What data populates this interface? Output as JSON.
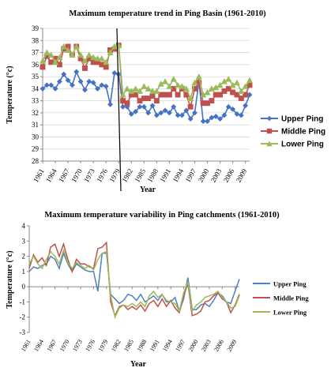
{
  "chart_data": [
    {
      "type": "line",
      "title": "Maximum temperature trend in Ping Basin (1961-2010)",
      "xlabel": "Year",
      "ylabel": "Temperature (°c)",
      "ylim": [
        28,
        39
      ],
      "yticks": [
        "28",
        "29",
        "30",
        "31",
        "32",
        "33",
        "34",
        "35",
        "36",
        "37",
        "38",
        "39"
      ],
      "xticks": [
        "1961",
        "1964",
        "1967",
        "1970",
        "1973",
        "1976",
        "1979",
        "1982",
        "1985",
        "1988",
        "1991",
        "1994",
        "1997",
        "2000",
        "2003",
        "2006",
        "2009"
      ],
      "x_start": 1961,
      "legend_position": "right",
      "series": [
        {
          "name": "Upper Ping",
          "color": "#4472C4",
          "marker": "diamond",
          "values": [
            34.0,
            34.3,
            34.3,
            34.0,
            34.6,
            35.2,
            34.7,
            34.3,
            35.4,
            34.6,
            33.9,
            34.6,
            34.5,
            34.0,
            34.3,
            34.2,
            32.7,
            35.3,
            35.2,
            32.5,
            32.5,
            31.9,
            32.1,
            32.5,
            32.5,
            32.0,
            32.6,
            31.8,
            32.0,
            32.2,
            32.0,
            32.5,
            31.8,
            31.8,
            32.2,
            31.5,
            32.0,
            34.6,
            31.3,
            31.3,
            31.6,
            31.7,
            31.5,
            31.8,
            32.5,
            32.3,
            31.9,
            31.8,
            32.6,
            33.5
          ]
        },
        {
          "name": "Middle Ping",
          "color": "#C0504D",
          "marker": "square",
          "values": [
            35.8,
            36.7,
            36.2,
            36.5,
            36.0,
            37.3,
            37.5,
            36.8,
            37.5,
            36.5,
            35.7,
            36.5,
            36.2,
            36.2,
            36.0,
            35.8,
            37.2,
            37.3,
            37.6,
            33.0,
            32.8,
            33.5,
            33.5,
            33.0,
            33.2,
            33.2,
            33.4,
            33.0,
            33.5,
            33.5,
            33.5,
            34.0,
            33.5,
            34.0,
            33.5,
            32.5,
            34.0,
            34.5,
            32.8,
            32.8,
            33.0,
            33.5,
            33.5,
            33.8,
            34.0,
            33.7,
            33.5,
            33.2,
            33.5,
            34.3
          ]
        },
        {
          "name": "Lower Ping",
          "color": "#9BBB59",
          "marker": "triangle",
          "values": [
            36.3,
            37.0,
            36.8,
            36.2,
            36.6,
            37.5,
            37.2,
            36.8,
            37.5,
            36.8,
            36.3,
            36.8,
            36.6,
            36.5,
            36.5,
            36.2,
            37.0,
            37.5,
            37.6,
            33.5,
            34.0,
            33.8,
            34.0,
            33.8,
            34.2,
            34.0,
            33.8,
            33.8,
            34.4,
            34.6,
            34.2,
            34.8,
            34.3,
            34.2,
            34.0,
            33.2,
            34.5,
            35.0,
            33.5,
            33.7,
            34.0,
            34.1,
            34.3,
            34.6,
            34.8,
            34.3,
            34.5,
            33.8,
            34.2,
            34.7
          ]
        }
      ]
    },
    {
      "type": "line",
      "title": "Maximum temperature variability in Ping catchments (1961-2010)",
      "xlabel": "Year",
      "ylabel": "Temperature (°c)",
      "ylim": [
        -3,
        4
      ],
      "yticks": [
        "-3",
        "-2",
        "-1",
        "0",
        "1",
        "2",
        "3",
        "4"
      ],
      "xticks": [
        "1961",
        "1964",
        "1967",
        "1970",
        "1973",
        "1976",
        "1979",
        "1982",
        "1985",
        "1988",
        "1991",
        "1994",
        "1997",
        "2000",
        "2003",
        "2006",
        "2009"
      ],
      "x_start": 1961,
      "legend_position": "right",
      "series": [
        {
          "name": "Upper Ping",
          "color": "#4F81BD",
          "values": [
            1.0,
            1.3,
            1.2,
            1.4,
            1.5,
            2.0,
            1.8,
            1.2,
            2.2,
            1.5,
            1.0,
            1.5,
            1.3,
            1.1,
            1.0,
            1.0,
            -0.3,
            2.2,
            2.2,
            -0.5,
            -0.8,
            -1.1,
            -0.9,
            -0.5,
            -0.6,
            -0.9,
            -0.5,
            -1.0,
            -0.8,
            -0.6,
            -0.9,
            -0.5,
            -1.0,
            -1.0,
            -0.7,
            -1.6,
            -0.8,
            0.6,
            -1.5,
            -1.5,
            -1.2,
            -1.1,
            -1.3,
            -0.9,
            -0.4,
            -0.6,
            -1.0,
            -1.1,
            -0.3,
            0.5
          ]
        },
        {
          "name": "Middle Ping",
          "color": "#C0504D",
          "values": [
            1.2,
            2.1,
            1.6,
            1.9,
            1.4,
            2.6,
            2.8,
            2.0,
            2.8,
            1.8,
            1.0,
            1.8,
            1.5,
            1.5,
            1.3,
            1.2,
            2.5,
            2.6,
            2.9,
            -1.0,
            -1.9,
            -1.3,
            -1.2,
            -1.5,
            -1.3,
            -1.5,
            -1.2,
            -1.6,
            -1.1,
            -0.9,
            -1.3,
            -0.8,
            -1.3,
            -0.9,
            -1.4,
            -1.7,
            -0.6,
            0.2,
            -1.9,
            -1.8,
            -1.6,
            -1.0,
            -0.9,
            -0.6,
            -0.4,
            -0.8,
            -1.0,
            -1.7,
            -1.2,
            -0.5
          ]
        },
        {
          "name": "Lower Ping",
          "color": "#9BBB59",
          "values": [
            1.5,
            2.0,
            1.5,
            1.2,
            1.8,
            2.3,
            2.0,
            1.5,
            2.4,
            1.6,
            1.2,
            1.6,
            1.4,
            1.2,
            1.4,
            1.1,
            1.8,
            2.2,
            2.3,
            -0.6,
            -2.0,
            -1.4,
            -1.2,
            -1.3,
            -1.1,
            -1.3,
            -1.0,
            -1.3,
            -0.6,
            -0.3,
            -0.7,
            -0.5,
            -0.9,
            -1.0,
            -1.1,
            -1.6,
            -0.4,
            0.3,
            -1.6,
            -1.2,
            -1.0,
            -0.7,
            -0.6,
            -0.5,
            -0.3,
            -0.7,
            -1.0,
            -1.4,
            -1.3,
            -0.6
          ]
        }
      ]
    }
  ]
}
